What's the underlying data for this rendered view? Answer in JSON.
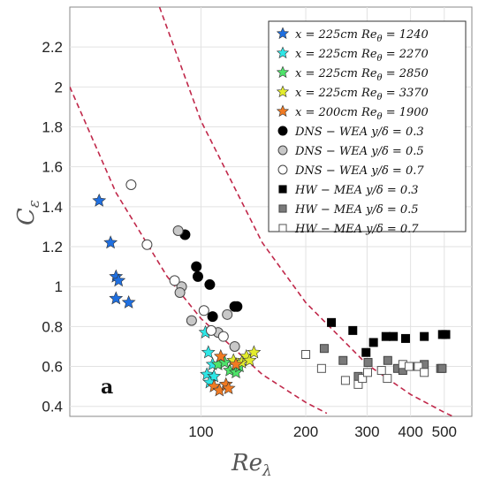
{
  "chart_data": {
    "type": "scatter",
    "panel_label": "a",
    "xlabel": "Re",
    "xlabel_sub": "λ",
    "ylabel": "C",
    "ylabel_sub": "ε",
    "x_scale": "log",
    "xlim": [
      42,
      600
    ],
    "ylim": [
      0.35,
      2.4
    ],
    "x_ticks": [
      100,
      200,
      300,
      400,
      500
    ],
    "x_tick_labels": [
      "100",
      "200",
      "300",
      "400",
      "500"
    ],
    "y_ticks": [
      0.4,
      0.6,
      0.8,
      1.0,
      1.2,
      1.4,
      1.6,
      1.8,
      2.0,
      2.2
    ],
    "y_tick_labels": [
      "0.4",
      "0.6",
      "0.8",
      "1",
      "1.2",
      "1.4",
      "1.6",
      "1.8",
      "2",
      "2.2"
    ],
    "grid": true,
    "legend_position": "top-right",
    "colors": {
      "star_blue": "#1f6fe0",
      "star_cyan": "#2ee6e6",
      "star_green": "#4ee36a",
      "star_yellow": "#e3ec2c",
      "star_orange": "#f07a22",
      "curve": "#c0284a"
    },
    "series": [
      {
        "name": "x = 225cm Re_θ = 1240",
        "label_parts": [
          "x = 225cm ",
          "Re",
          "θ",
          " = 1240"
        ],
        "marker": "star",
        "color": "#1f6fe0",
        "points": [
          [
            51,
            1.43
          ],
          [
            55,
            1.22
          ],
          [
            57,
            1.05
          ],
          [
            58,
            1.03
          ],
          [
            57,
            0.94
          ],
          [
            62,
            0.92
          ]
        ]
      },
      {
        "name": "x = 225cm Re_θ = 2270",
        "label_parts": [
          "x = 225cm ",
          "Re",
          "θ",
          " = 2270"
        ],
        "marker": "star",
        "color": "#2ee6e6",
        "points": [
          [
            103,
            0.77
          ],
          [
            105,
            0.67
          ],
          [
            108,
            0.61
          ],
          [
            104,
            0.56
          ],
          [
            109,
            0.55
          ],
          [
            106,
            0.52
          ]
        ]
      },
      {
        "name": "x = 225cm Re_θ = 2850",
        "label_parts": [
          "x = 225cm ",
          "Re",
          "θ",
          " = 2850"
        ],
        "marker": "star",
        "color": "#4ee36a",
        "points": [
          [
            112,
            0.61
          ],
          [
            117,
            0.62
          ],
          [
            121,
            0.58
          ],
          [
            126,
            0.57
          ],
          [
            129,
            0.6
          ]
        ]
      },
      {
        "name": "x = 225cm Re_θ = 3370",
        "label_parts": [
          "x = 225cm ",
          "Re",
          "θ",
          " = 3370"
        ],
        "marker": "star",
        "color": "#e3ec2c",
        "points": [
          [
            124,
            0.63
          ],
          [
            131,
            0.62
          ],
          [
            135,
            0.65
          ],
          [
            138,
            0.63
          ],
          [
            142,
            0.67
          ]
        ]
      },
      {
        "name": "x = 200cm Re_θ = 1900",
        "label_parts": [
          "x = 200cm ",
          "Re",
          "θ",
          " = 1900"
        ],
        "marker": "star",
        "color": "#f07a22",
        "points": [
          [
            114,
            0.65
          ],
          [
            109,
            0.5
          ],
          [
            113,
            0.48
          ],
          [
            118,
            0.51
          ],
          [
            120,
            0.49
          ],
          [
            126,
            0.61
          ]
        ]
      },
      {
        "name": "DNS − WEA y/δ = 0.3",
        "label_parts": [
          "DNS − WEA y/δ = 0.3",
          "",
          "",
          ""
        ],
        "marker": "circle",
        "fill": "#000000",
        "stroke": "#000000",
        "points": [
          [
            90,
            1.26
          ],
          [
            97,
            1.1
          ],
          [
            98,
            1.05
          ],
          [
            106,
            1.01
          ],
          [
            108,
            0.85
          ],
          [
            125,
            0.9
          ],
          [
            127,
            0.9
          ]
        ]
      },
      {
        "name": "DNS − WEA y/δ = 0.5",
        "label_parts": [
          "DNS − WEA y/δ = 0.5",
          "",
          "",
          ""
        ],
        "marker": "circle",
        "fill": "#c8c8c8",
        "stroke": "#444444",
        "points": [
          [
            86,
            1.28
          ],
          [
            88,
            1.0
          ],
          [
            87,
            0.97
          ],
          [
            94,
            0.83
          ],
          [
            112,
            0.77
          ],
          [
            119,
            0.86
          ],
          [
            125,
            0.7
          ]
        ]
      },
      {
        "name": "DNS − WEA y/δ = 0.7",
        "label_parts": [
          "DNS − WEA y/δ = 0.7",
          "",
          "",
          ""
        ],
        "marker": "circle",
        "fill": "#ffffff",
        "stroke": "#444444",
        "points": [
          [
            63,
            1.51
          ],
          [
            70,
            1.21
          ],
          [
            84,
            1.03
          ],
          [
            102,
            0.88
          ],
          [
            107,
            0.78
          ],
          [
            116,
            0.75
          ]
        ]
      },
      {
        "name": "HW − MEA y/δ = 0.3",
        "label_parts": [
          "HW − MEA y/δ = 0.3",
          "",
          "",
          ""
        ],
        "marker": "square",
        "fill": "#000000",
        "stroke": "#000000",
        "points": [
          [
            237,
            0.82
          ],
          [
            273,
            0.78
          ],
          [
            298,
            0.67
          ],
          [
            313,
            0.72
          ],
          [
            340,
            0.75
          ],
          [
            357,
            0.75
          ],
          [
            387,
            0.74
          ],
          [
            438,
            0.75
          ],
          [
            494,
            0.76
          ],
          [
            505,
            0.76
          ]
        ]
      },
      {
        "name": "HW − MEA y/δ = 0.5",
        "label_parts": [
          "HW − MEA y/δ = 0.5",
          "",
          "",
          ""
        ],
        "marker": "square",
        "fill": "#7a7a7a",
        "stroke": "#444444",
        "points": [
          [
            226,
            0.69
          ],
          [
            256,
            0.63
          ],
          [
            283,
            0.55
          ],
          [
            302,
            0.62
          ],
          [
            344,
            0.63
          ],
          [
            367,
            0.59
          ],
          [
            380,
            0.58
          ],
          [
            414,
            0.6
          ],
          [
            438,
            0.61
          ],
          [
            488,
            0.59
          ],
          [
            493,
            0.59
          ]
        ]
      },
      {
        "name": "HW − MEA y/δ = 0.7",
        "label_parts": [
          "HW − MEA y/δ = 0.7",
          "",
          "",
          ""
        ],
        "marker": "square",
        "fill": "#ffffff",
        "stroke": "#555555",
        "points": [
          [
            200,
            0.66
          ],
          [
            222,
            0.59
          ],
          [
            260,
            0.53
          ],
          [
            283,
            0.51
          ],
          [
            291,
            0.54
          ],
          [
            301,
            0.57
          ],
          [
            330,
            0.58
          ],
          [
            343,
            0.54
          ],
          [
            380,
            0.61
          ],
          [
            396,
            0.6
          ],
          [
            421,
            0.6
          ],
          [
            438,
            0.57
          ]
        ]
      }
    ],
    "reference_curves": [
      {
        "style": "dashed",
        "color": "#c0284a",
        "points": [
          [
            42,
            2.0
          ],
          [
            57,
            1.47
          ],
          [
            80,
            1.05
          ],
          [
            100,
            0.84
          ],
          [
            150,
            0.56
          ],
          [
            200,
            0.42
          ],
          [
            230,
            0.365
          ]
        ]
      },
      {
        "style": "dashed",
        "color": "#c0284a",
        "points": [
          [
            76,
            2.4
          ],
          [
            100,
            1.83
          ],
          [
            150,
            1.22
          ],
          [
            200,
            0.92
          ],
          [
            300,
            0.61
          ],
          [
            400,
            0.46
          ],
          [
            500,
            0.37
          ],
          [
            560,
            0.33
          ]
        ]
      }
    ]
  }
}
